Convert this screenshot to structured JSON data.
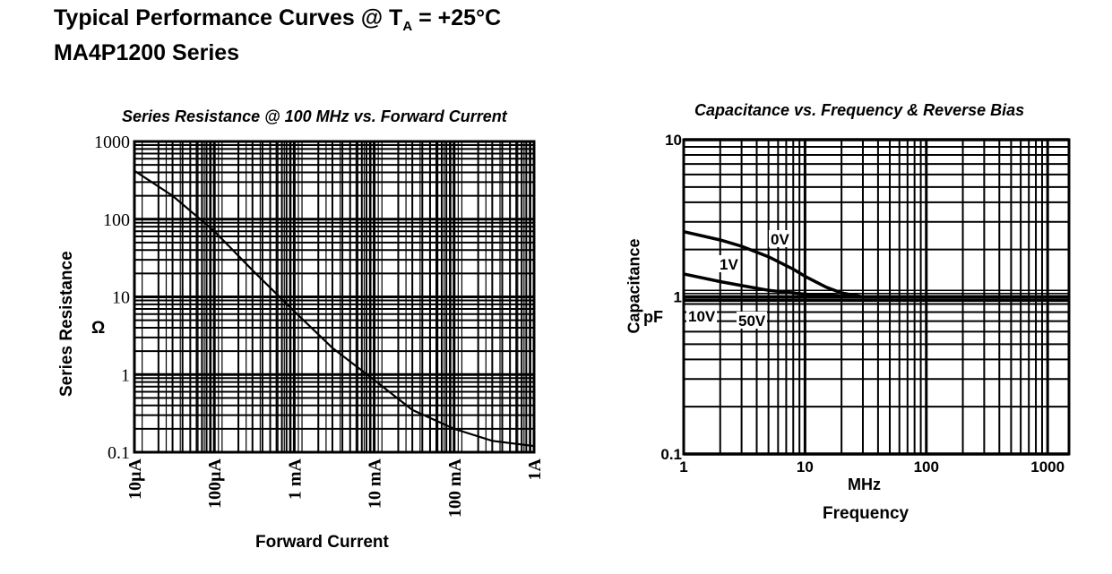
{
  "header": {
    "line1_prefix": "Typical Performance Curves @  T",
    "line1_sub": "A",
    "line1_suffix": " = +25°C",
    "line2": "MA4P1200 Series"
  },
  "chart_data": [
    {
      "type": "line",
      "title": "Series Resistance @ 100 MHz vs. Forward Current",
      "xlabel": "Forward Current",
      "ylabel": "Series Resistance",
      "yunit": "Ω",
      "xscale": "log",
      "yscale": "log",
      "xlim": [
        1e-05,
        1
      ],
      "ylim": [
        0.1,
        1000
      ],
      "grid": true,
      "x_tick_labels": [
        "10µA",
        "100µA",
        "1 mA",
        "10 mA",
        "100 mA",
        "1A"
      ],
      "x_tick_values": [
        1e-05,
        0.0001,
        0.001,
        0.01,
        0.1,
        1
      ],
      "y_tick_labels": [
        "1000",
        "100",
        "10",
        "1",
        "0.1"
      ],
      "y_tick_values": [
        1000,
        100,
        10,
        1,
        0.1
      ],
      "series": [
        {
          "x": [
            1e-05,
            3e-05,
            0.0001,
            0.0003,
            0.001,
            0.003,
            0.01,
            0.03,
            0.1,
            0.3,
            1
          ],
          "y": [
            420,
            200,
            70,
            22,
            6.5,
            2.2,
            0.85,
            0.35,
            0.2,
            0.14,
            0.12
          ]
        }
      ]
    },
    {
      "type": "line",
      "title": "Capacitance vs. Frequency & Reverse Bias",
      "xlabel": "Frequency",
      "xunit": "MHz",
      "ylabel": "Capacitance",
      "yunit": "pF",
      "xscale": "log",
      "yscale": "log",
      "xlim": [
        1,
        1500
      ],
      "ylim": [
        0.1,
        10
      ],
      "grid": true,
      "x_tick_labels": [
        "1",
        "10",
        "100",
        "1000"
      ],
      "x_tick_values": [
        1,
        10,
        100,
        1000
      ],
      "y_tick_labels": [
        "10",
        "1",
        "0.1"
      ],
      "y_tick_values": [
        10,
        1,
        0.1
      ],
      "series": [
        {
          "name": "0V",
          "x": [
            1,
            2,
            3,
            5,
            8,
            10,
            15,
            20,
            30,
            40,
            100,
            1500
          ],
          "y": [
            2.6,
            2.3,
            2.1,
            1.8,
            1.5,
            1.35,
            1.15,
            1.06,
            1.0,
            1.0,
            1.0,
            1.0
          ]
        },
        {
          "name": "1V",
          "x": [
            1,
            2,
            3,
            5,
            10,
            20,
            30,
            100,
            1500
          ],
          "y": [
            1.4,
            1.25,
            1.18,
            1.1,
            1.04,
            1.01,
            1.0,
            1.0,
            1.0
          ]
        },
        {
          "name": "10V",
          "x": [
            1,
            10,
            100,
            1500
          ],
          "y": [
            1.0,
            1.0,
            1.0,
            1.0
          ]
        },
        {
          "name": "50V",
          "x": [
            1,
            10,
            100,
            1500
          ],
          "y": [
            0.95,
            0.95,
            0.95,
            0.95
          ]
        }
      ]
    }
  ]
}
